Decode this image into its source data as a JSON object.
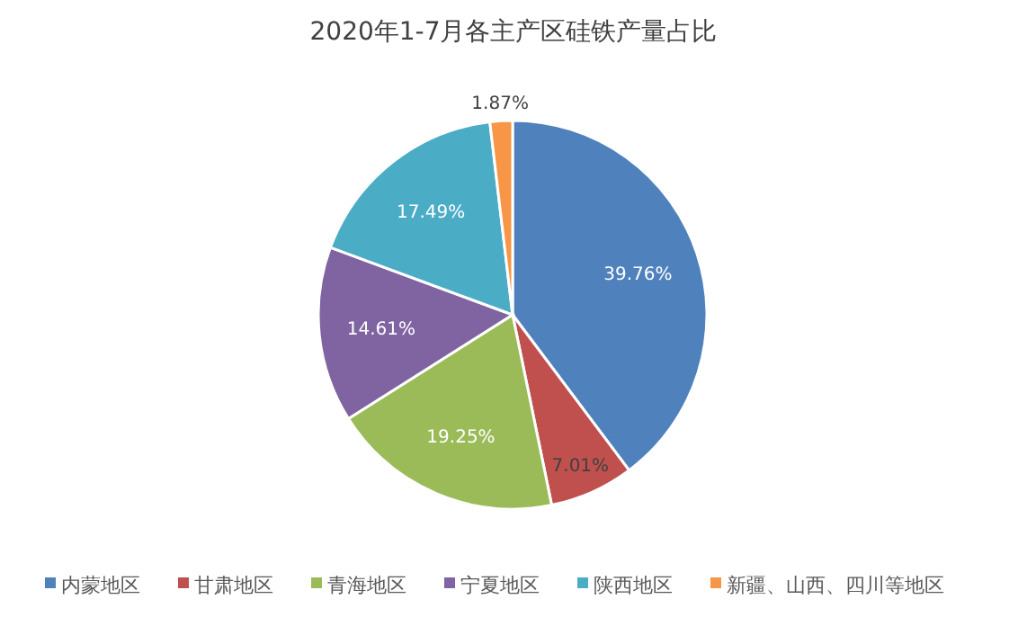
{
  "chart_data": {
    "type": "pie",
    "title": "2020年1-7月各主产区硅铁产量占比",
    "categories": [
      "内蒙地区",
      "甘肃地区",
      "青海地区",
      "宁夏地区",
      "陕西地区",
      "新疆、山西、四川等地区"
    ],
    "values": [
      39.76,
      7.01,
      19.25,
      14.61,
      17.49,
      1.87
    ],
    "colors": [
      "#4f81bd",
      "#c0504d",
      "#9bbb59",
      "#8064a2",
      "#4bacc6",
      "#f79646"
    ],
    "value_labels": [
      "39.76%",
      "7.01%",
      "19.25%",
      "14.61%",
      "17.49%",
      "1.87%"
    ],
    "legend": "bottom"
  }
}
